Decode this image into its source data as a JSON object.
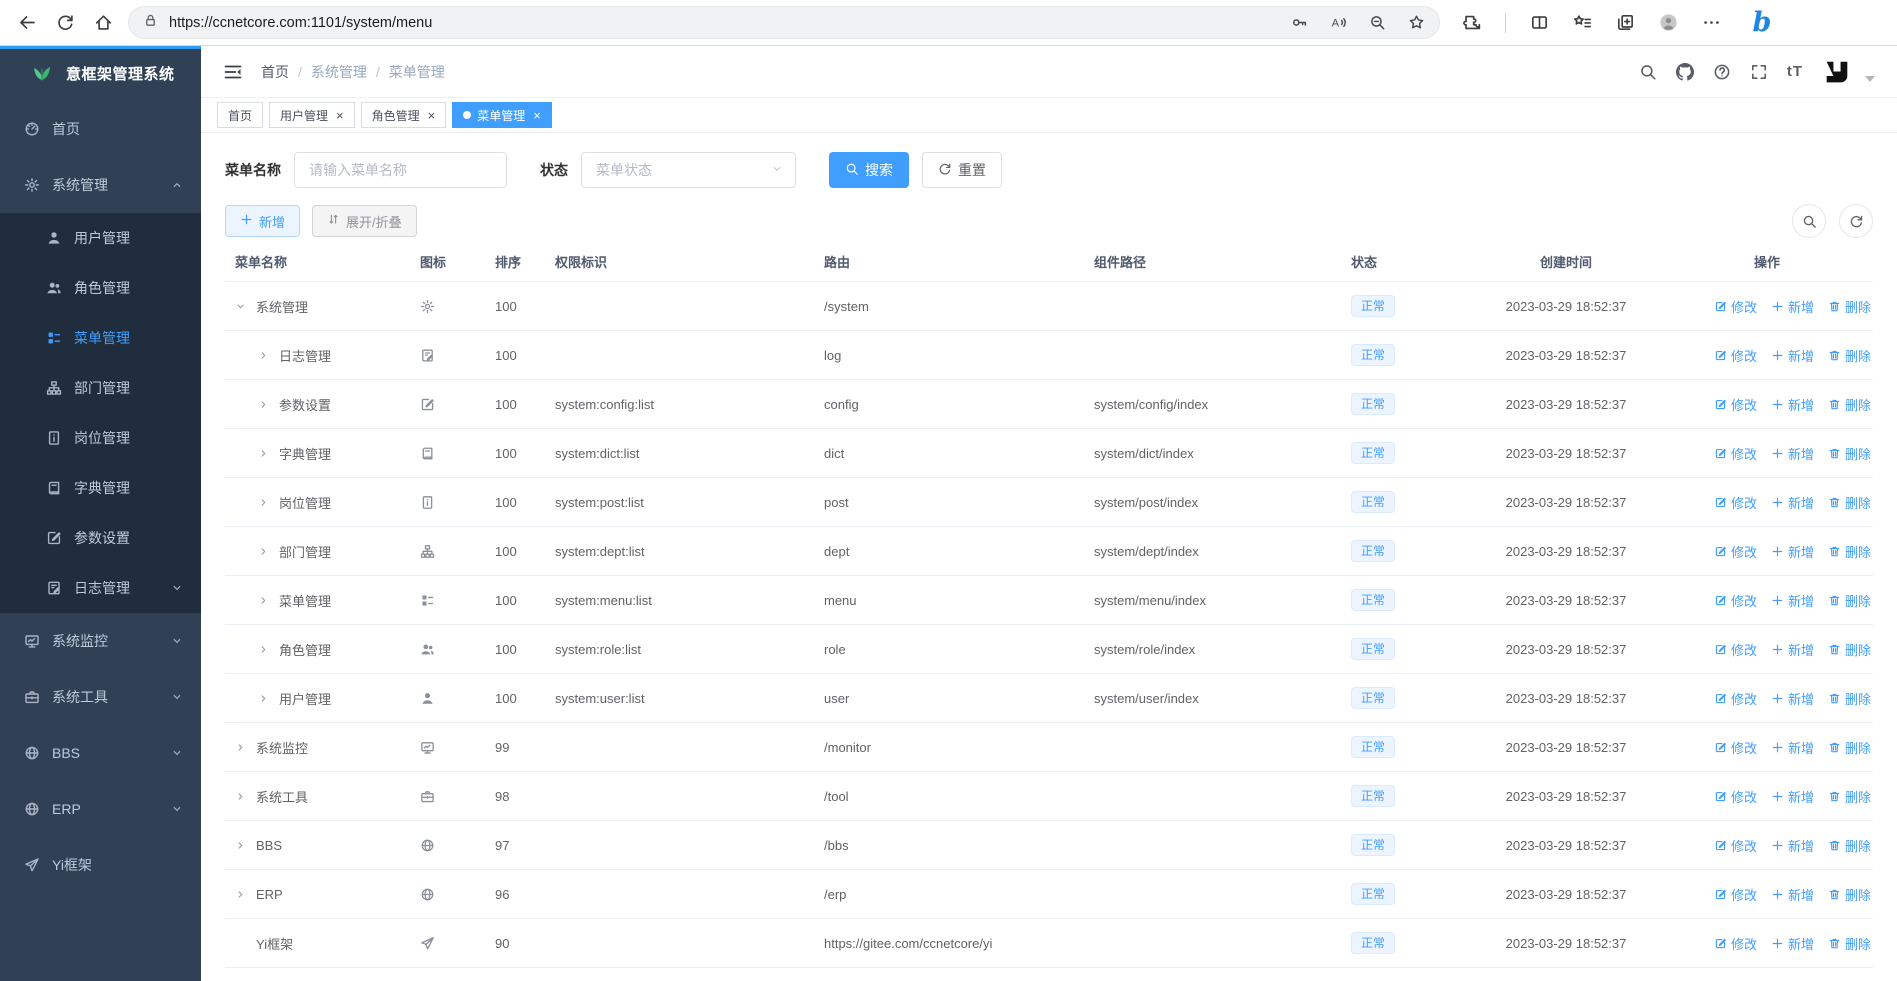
{
  "browser": {
    "url": "https://ccnetcore.com:1101/system/menu",
    "left_icons": [
      "back",
      "refresh",
      "home"
    ],
    "lock_icon": "lock",
    "urlbar_icons": [
      "password-key",
      "read-aloud",
      "zoom-out",
      "favorite-add"
    ],
    "right_icons": [
      "extensions",
      "split-screen",
      "favorites-bar",
      "collections",
      "profile",
      "more-options"
    ],
    "bing_label": "b"
  },
  "sidebar": {
    "title": "意框架管理系统",
    "logo_color": "#3eb370",
    "items": [
      {
        "icon": "dashboard",
        "label": "首页"
      },
      {
        "icon": "gear",
        "label": "系统管理",
        "arrow": "up",
        "children": [
          {
            "icon": "user",
            "label": "用户管理"
          },
          {
            "icon": "users",
            "label": "角色管理"
          },
          {
            "icon": "menu",
            "label": "菜单管理",
            "active": true
          },
          {
            "icon": "tree",
            "label": "部门管理"
          },
          {
            "icon": "badge",
            "label": "岗位管理"
          },
          {
            "icon": "book",
            "label": "字典管理"
          },
          {
            "icon": "edit",
            "label": "参数设置"
          },
          {
            "icon": "log",
            "label": "日志管理",
            "arrow": "down"
          }
        ]
      },
      {
        "icon": "monitor",
        "label": "系统监控",
        "arrow": "down"
      },
      {
        "icon": "toolbox",
        "label": "系统工具",
        "arrow": "down"
      },
      {
        "icon": "globe",
        "label": "BBS",
        "arrow": "down"
      },
      {
        "icon": "globe",
        "label": "ERP",
        "arrow": "down"
      },
      {
        "icon": "send",
        "label": "Yi框架"
      }
    ]
  },
  "header": {
    "breadcrumb": [
      "首页",
      "系统管理",
      "菜单管理"
    ],
    "icons": [
      "search",
      "github",
      "question",
      "fullscreen"
    ],
    "font_size_icon_label": "tT"
  },
  "tabs": [
    {
      "label": "首页",
      "closable": false,
      "active": false
    },
    {
      "label": "用户管理",
      "closable": true,
      "active": false
    },
    {
      "label": "角色管理",
      "closable": true,
      "active": false
    },
    {
      "label": "菜单管理",
      "closable": true,
      "active": true
    }
  ],
  "filters": {
    "name_label": "菜单名称",
    "name_placeholder": "请输入菜单名称",
    "status_label": "状态",
    "status_placeholder": "菜单状态",
    "search_label": "搜索",
    "reset_label": "重置"
  },
  "toolbar": {
    "add_label": "新增",
    "toggle_label": "展开/折叠"
  },
  "table": {
    "columns": [
      "菜单名称",
      "图标",
      "排序",
      "权限标识",
      "路由",
      "组件路径",
      "状态",
      "创建时间",
      "操作"
    ],
    "actions": [
      {
        "icon": "edit-pen",
        "label": "修改"
      },
      {
        "icon": "plus",
        "label": "新增"
      },
      {
        "icon": "trash",
        "label": "删除"
      }
    ],
    "rows": [
      {
        "expand": "down",
        "depth": 0,
        "name": "系统管理",
        "icon": "gear",
        "order": "100",
        "perm": "",
        "route": "/system",
        "component": "",
        "status": "正常",
        "created": "2023-03-29 18:52:37"
      },
      {
        "expand": "right",
        "depth": 1,
        "name": "日志管理",
        "icon": "log",
        "order": "100",
        "perm": "",
        "route": "log",
        "component": "",
        "status": "正常",
        "created": "2023-03-29 18:52:37"
      },
      {
        "expand": "right",
        "depth": 1,
        "name": "参数设置",
        "icon": "edit",
        "order": "100",
        "perm": "system:config:list",
        "route": "config",
        "component": "system/config/index",
        "status": "正常",
        "created": "2023-03-29 18:52:37"
      },
      {
        "expand": "right",
        "depth": 1,
        "name": "字典管理",
        "icon": "book",
        "order": "100",
        "perm": "system:dict:list",
        "route": "dict",
        "component": "system/dict/index",
        "status": "正常",
        "created": "2023-03-29 18:52:37"
      },
      {
        "expand": "right",
        "depth": 1,
        "name": "岗位管理",
        "icon": "badge",
        "order": "100",
        "perm": "system:post:list",
        "route": "post",
        "component": "system/post/index",
        "status": "正常",
        "created": "2023-03-29 18:52:37"
      },
      {
        "expand": "right",
        "depth": 1,
        "name": "部门管理",
        "icon": "tree",
        "order": "100",
        "perm": "system:dept:list",
        "route": "dept",
        "component": "system/dept/index",
        "status": "正常",
        "created": "2023-03-29 18:52:37"
      },
      {
        "expand": "right",
        "depth": 1,
        "name": "菜单管理",
        "icon": "menu",
        "order": "100",
        "perm": "system:menu:list",
        "route": "menu",
        "component": "system/menu/index",
        "status": "正常",
        "created": "2023-03-29 18:52:37"
      },
      {
        "expand": "right",
        "depth": 1,
        "name": "角色管理",
        "icon": "users",
        "order": "100",
        "perm": "system:role:list",
        "route": "role",
        "component": "system/role/index",
        "status": "正常",
        "created": "2023-03-29 18:52:37"
      },
      {
        "expand": "right",
        "depth": 1,
        "name": "用户管理",
        "icon": "user",
        "order": "100",
        "perm": "system:user:list",
        "route": "user",
        "component": "system/user/index",
        "status": "正常",
        "created": "2023-03-29 18:52:37"
      },
      {
        "expand": "right",
        "depth": 0,
        "name": "系统监控",
        "icon": "monitor",
        "order": "99",
        "perm": "",
        "route": "/monitor",
        "component": "",
        "status": "正常",
        "created": "2023-03-29 18:52:37"
      },
      {
        "expand": "right",
        "depth": 0,
        "name": "系统工具",
        "icon": "toolbox",
        "order": "98",
        "perm": "",
        "route": "/tool",
        "component": "",
        "status": "正常",
        "created": "2023-03-29 18:52:37"
      },
      {
        "expand": "right",
        "depth": 0,
        "name": "BBS",
        "icon": "globe",
        "order": "97",
        "perm": "",
        "route": "/bbs",
        "component": "",
        "status": "正常",
        "created": "2023-03-29 18:52:37"
      },
      {
        "expand": "right",
        "depth": 0,
        "name": "ERP",
        "icon": "globe",
        "order": "96",
        "perm": "",
        "route": "/erp",
        "component": "",
        "status": "正常",
        "created": "2023-03-29 18:52:37"
      },
      {
        "expand": "none",
        "depth": 0,
        "name": "Yi框架",
        "icon": "send",
        "order": "90",
        "perm": "",
        "route": "https://gitee.com/ccnetcore/yi",
        "component": "",
        "status": "正常",
        "created": "2023-03-29 18:52:37"
      }
    ]
  },
  "colors": {
    "accent": "#409eff",
    "sidebar_bg": "#304156",
    "sidebar_sub_bg": "#1f2d3d",
    "badge_bg": "#ecf5ff",
    "progress_bar": "#2d9cf4"
  }
}
